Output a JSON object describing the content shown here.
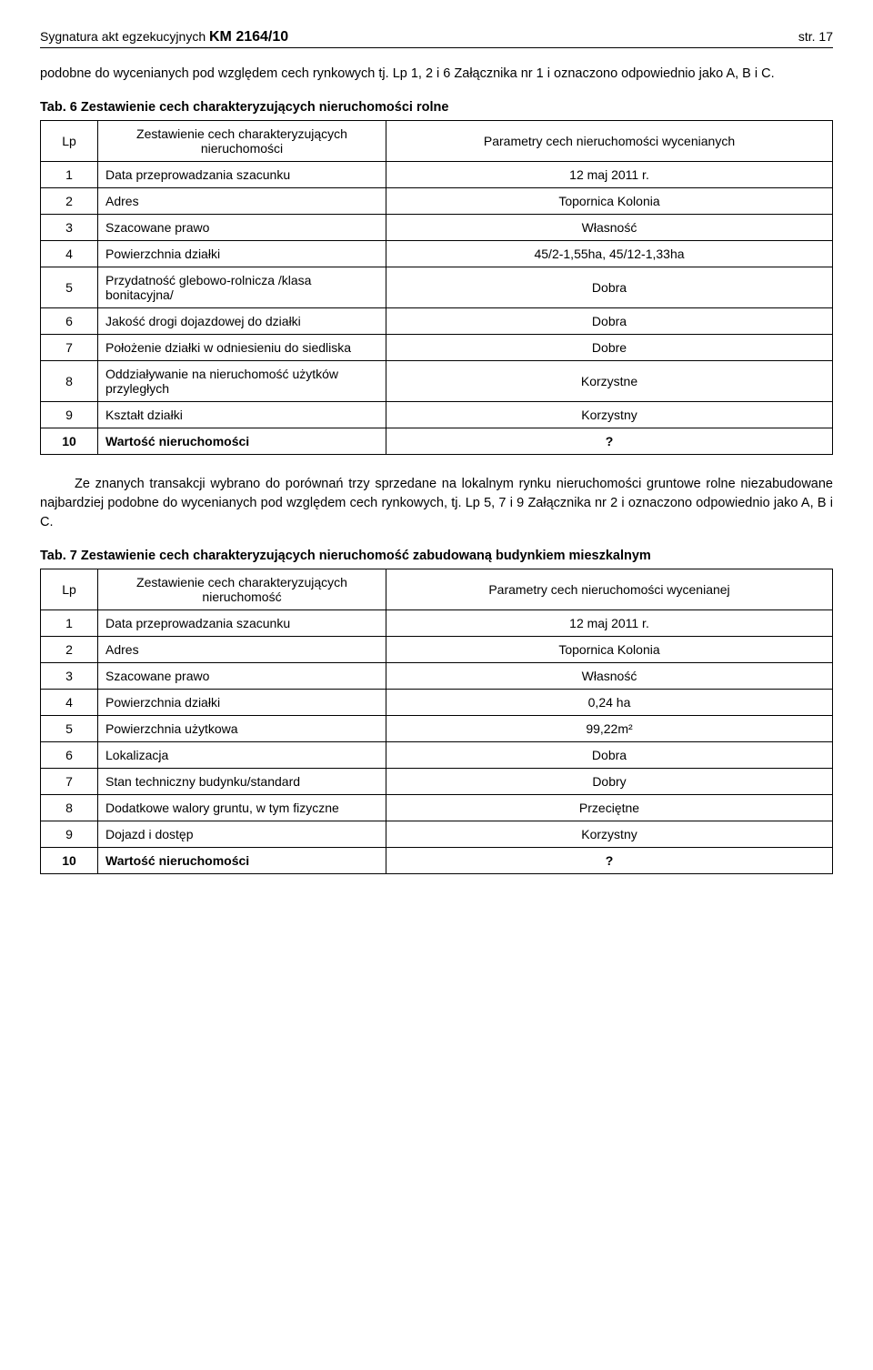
{
  "header": {
    "left_prefix": "Sygnatura akt egzekucyjnych ",
    "left_km": "KM 2164/10",
    "right": "str. 17"
  },
  "para1": "podobne do wycenianych pod względem cech rynkowych tj. Lp 1, 2 i 6 Załącznika nr 1 i oznaczono odpowiednio jako A, B i C.",
  "table6": {
    "caption": "Tab. 6  Zestawienie cech charakteryzujących nieruchomości rolne",
    "header": {
      "lp": "Lp",
      "mid": "Zestawienie cech charakteryzujących nieruchomości",
      "right": "Parametry cech nieruchomości wycenianych"
    },
    "rows": [
      {
        "lp": "1",
        "label": "Data przeprowadzania szacunku",
        "value": "12 maj 2011 r."
      },
      {
        "lp": "2",
        "label": "Adres",
        "value": "Topornica Kolonia"
      },
      {
        "lp": "3",
        "label": "Szacowane prawo",
        "value": "Własność"
      },
      {
        "lp": "4",
        "label": "Powierzchnia działki",
        "value": "45/2-1,55ha, 45/12-1,33ha"
      },
      {
        "lp": "5",
        "label": "Przydatność glebowo-rolnicza /klasa bonitacyjna/",
        "value": "Dobra"
      },
      {
        "lp": "6",
        "label": "Jakość drogi dojazdowej do działki",
        "value": "Dobra"
      },
      {
        "lp": "7",
        "label": "Położenie działki w odniesieniu do siedliska",
        "value": "Dobre"
      },
      {
        "lp": "8",
        "label": "Oddziaływanie na nieruchomość użytków przyległych",
        "value": "Korzystne"
      },
      {
        "lp": "9",
        "label": "Kształt działki",
        "value": "Korzystny"
      },
      {
        "lp": "10",
        "label": "Wartość nieruchomości",
        "value": "?",
        "bold": true
      }
    ]
  },
  "para2a": "Ze znanych transakcji wybrano do porównań trzy sprzedane na lokalnym rynku nieruchomości gruntowe rolne niezabudowane najbardziej podobne do wycenianych pod względem cech rynkowych, tj. Lp 5, 7 i 9 Załącznika nr 2 i oznaczono odpowiednio jako A, B i C.",
  "table7": {
    "caption": "Tab. 7 Zestawienie cech charakteryzujących nieruchomość zabudowaną budynkiem mieszkalnym",
    "header": {
      "lp": "Lp",
      "mid": "Zestawienie cech charakteryzujących nieruchomość",
      "right": "Parametry cech nieruchomości wycenianej"
    },
    "rows": [
      {
        "lp": "1",
        "label": "Data przeprowadzania szacunku",
        "value": "12 maj 2011 r."
      },
      {
        "lp": "2",
        "label": "Adres",
        "value": "Topornica Kolonia"
      },
      {
        "lp": "3",
        "label": "Szacowane prawo",
        "value": "Własność"
      },
      {
        "lp": "4",
        "label": "Powierzchnia działki",
        "value": "0,24 ha"
      },
      {
        "lp": "5",
        "label": "Powierzchnia użytkowa",
        "value": "99,22m²"
      },
      {
        "lp": "6",
        "label": "Lokalizacja",
        "value": "Dobra"
      },
      {
        "lp": "7",
        "label": "Stan techniczny budynku/standard",
        "value": "Dobry"
      },
      {
        "lp": "8",
        "label": "Dodatkowe walory gruntu, w tym fizyczne",
        "value": "Przeciętne"
      },
      {
        "lp": "9",
        "label": "Dojazd i dostęp",
        "value": "Korzystny"
      },
      {
        "lp": "10",
        "label": "Wartość nieruchomości",
        "value": "?",
        "bold": true
      }
    ]
  }
}
